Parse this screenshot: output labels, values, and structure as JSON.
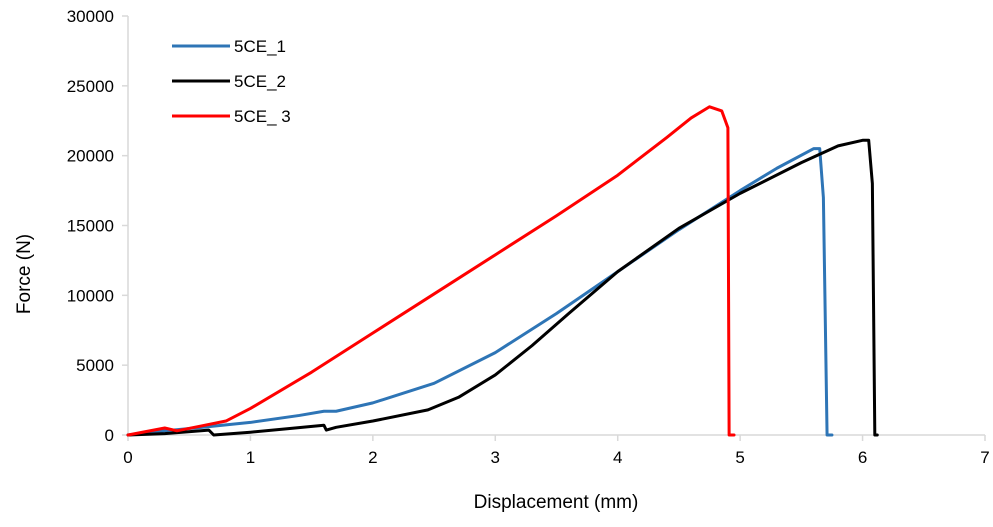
{
  "chart_data": {
    "type": "line",
    "title": "",
    "xlabel": "Displacement (mm)",
    "ylabel": "Force (N)",
    "xlim": [
      0,
      7
    ],
    "ylim": [
      0,
      30000
    ],
    "x_ticks": [
      0,
      1,
      2,
      3,
      4,
      5,
      6,
      7
    ],
    "y_ticks": [
      0,
      5000,
      10000,
      15000,
      20000,
      25000,
      30000
    ],
    "x_tick_labels": [
      "0",
      "1",
      "2",
      "3",
      "4",
      "5",
      "6",
      "7"
    ],
    "y_tick_labels": [
      "0",
      "5000",
      "10000",
      "15000",
      "20000",
      "25000",
      "30000"
    ],
    "grid": false,
    "legend_position": "top-left",
    "series": [
      {
        "name": "5CE_1",
        "color": "#2E75B6",
        "points": [
          [
            0,
            0
          ],
          [
            0.3,
            300
          ],
          [
            0.6,
            550
          ],
          [
            1.0,
            900
          ],
          [
            1.4,
            1400
          ],
          [
            1.6,
            1700
          ],
          [
            1.7,
            1700
          ],
          [
            2.0,
            2300
          ],
          [
            2.5,
            3700
          ],
          [
            3.0,
            5900
          ],
          [
            3.5,
            8700
          ],
          [
            4.0,
            11700
          ],
          [
            4.5,
            14700
          ],
          [
            5.0,
            17500
          ],
          [
            5.3,
            19100
          ],
          [
            5.6,
            20500
          ],
          [
            5.65,
            20500
          ],
          [
            5.68,
            17000
          ],
          [
            5.71,
            0
          ],
          [
            5.75,
            0
          ]
        ]
      },
      {
        "name": "5CE_2",
        "color": "#000000",
        "points": [
          [
            0,
            0
          ],
          [
            0.3,
            100
          ],
          [
            0.66,
            350
          ],
          [
            0.7,
            0
          ],
          [
            1.0,
            200
          ],
          [
            1.3,
            450
          ],
          [
            1.6,
            700
          ],
          [
            1.62,
            350
          ],
          [
            1.7,
            550
          ],
          [
            2.0,
            1000
          ],
          [
            2.45,
            1800
          ],
          [
            2.7,
            2700
          ],
          [
            3.0,
            4300
          ],
          [
            3.3,
            6400
          ],
          [
            3.6,
            8700
          ],
          [
            4.0,
            11700
          ],
          [
            4.5,
            14800
          ],
          [
            5.0,
            17300
          ],
          [
            5.5,
            19500
          ],
          [
            5.8,
            20700
          ],
          [
            6.0,
            21100
          ],
          [
            6.05,
            21100
          ],
          [
            6.08,
            18000
          ],
          [
            6.1,
            0
          ],
          [
            6.12,
            0
          ]
        ]
      },
      {
        "name": "5CE_ 3",
        "color": "#FF0000",
        "points": [
          [
            0,
            0
          ],
          [
            0.3,
            500
          ],
          [
            0.4,
            300
          ],
          [
            0.6,
            650
          ],
          [
            0.8,
            1000
          ],
          [
            1.0,
            1900
          ],
          [
            1.5,
            4500
          ],
          [
            2.0,
            7300
          ],
          [
            2.5,
            10100
          ],
          [
            3.0,
            12900
          ],
          [
            3.5,
            15700
          ],
          [
            4.0,
            18600
          ],
          [
            4.4,
            21300
          ],
          [
            4.6,
            22700
          ],
          [
            4.75,
            23500
          ],
          [
            4.85,
            23200
          ],
          [
            4.9,
            22000
          ],
          [
            4.91,
            0
          ],
          [
            4.95,
            0
          ]
        ]
      }
    ]
  }
}
